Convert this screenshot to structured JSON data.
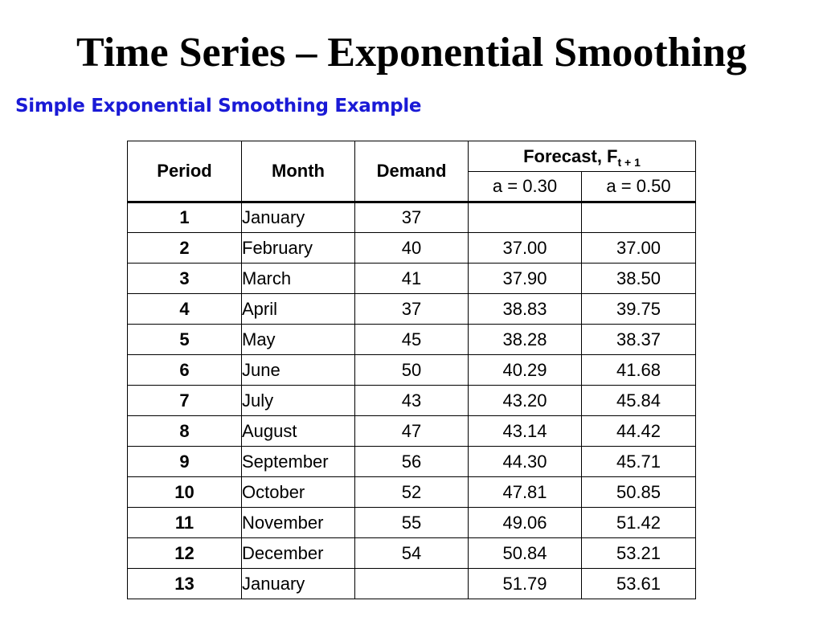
{
  "slide": {
    "title": "Time Series – Exponential Smoothing",
    "subtitle": "Simple Exponential Smoothing Example"
  },
  "table": {
    "headers": {
      "period": "Period",
      "month": "Month",
      "demand": "Demand",
      "forecast": "Forecast, F",
      "forecast_subscript": "t + 1",
      "alpha_1": "a = 0.30",
      "alpha_2": "a = 0.50"
    },
    "rows": [
      {
        "period": "1",
        "month": "January",
        "demand": "37",
        "f030": "",
        "f050": ""
      },
      {
        "period": "2",
        "month": "February",
        "demand": "40",
        "f030": "37.00",
        "f050": "37.00"
      },
      {
        "period": "3",
        "month": "March",
        "demand": "41",
        "f030": "37.90",
        "f050": "38.50"
      },
      {
        "period": "4",
        "month": "April",
        "demand": "37",
        "f030": "38.83",
        "f050": "39.75"
      },
      {
        "period": "5",
        "month": "May",
        "demand": "45",
        "f030": "38.28",
        "f050": "38.37"
      },
      {
        "period": "6",
        "month": "June",
        "demand": "50",
        "f030": "40.29",
        "f050": "41.68"
      },
      {
        "period": "7",
        "month": "July",
        "demand": "43",
        "f030": "43.20",
        "f050": "45.84"
      },
      {
        "period": "8",
        "month": "August",
        "demand": "47",
        "f030": "43.14",
        "f050": "44.42"
      },
      {
        "period": "9",
        "month": "September",
        "demand": "56",
        "f030": "44.30",
        "f050": "45.71"
      },
      {
        "period": "10",
        "month": "October",
        "demand": "52",
        "f030": "47.81",
        "f050": "50.85"
      },
      {
        "period": "11",
        "month": "November",
        "demand": "55",
        "f030": "49.06",
        "f050": "51.42"
      },
      {
        "period": "12",
        "month": "December",
        "demand": "54",
        "f030": "50.84",
        "f050": "53.21"
      },
      {
        "period": "13",
        "month": "January",
        "demand": "",
        "f030": "51.79",
        "f050": "53.61"
      }
    ]
  }
}
